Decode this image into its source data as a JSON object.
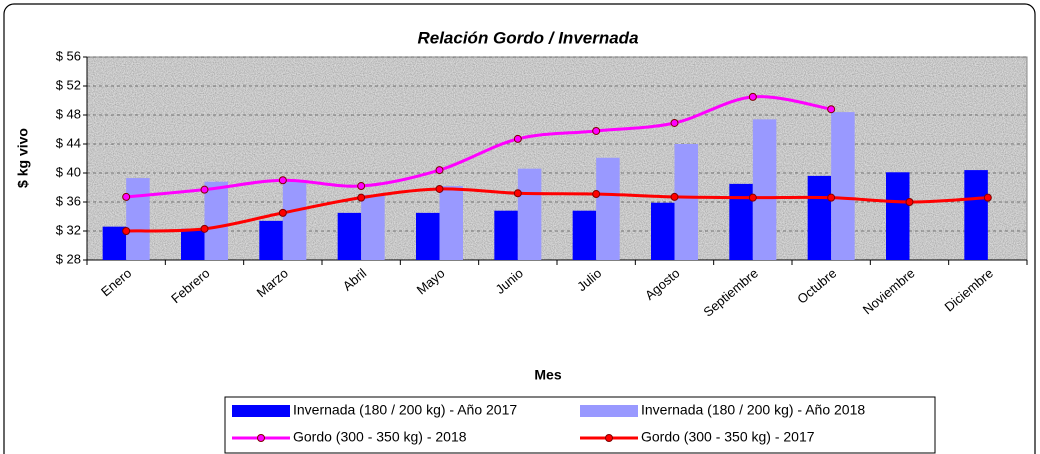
{
  "chart_data": {
    "type": "bar",
    "title": "Relación Gordo / Invernada",
    "x_label": "Mes",
    "y_label": "$ kg vivo",
    "categories": [
      "Enero",
      "Febrero",
      "Marzo",
      "Abril",
      "Mayo",
      "Junio",
      "Julio",
      "Agosto",
      "Septiembre",
      "Octubre",
      "Noviembre",
      "Diciembre"
    ],
    "series": [
      {
        "name": "Invernada (180 / 200 kg) - Año 2017",
        "type": "bar",
        "color": "#0000ff",
        "values": [
          32.6,
          32.3,
          33.4,
          34.5,
          34.5,
          34.8,
          34.8,
          35.9,
          38.5,
          39.6,
          40.1,
          40.4
        ]
      },
      {
        "name": "Invernada (180 / 200 kg) - Año 2018",
        "type": "bar",
        "color": "#9999ff",
        "values": [
          39.3,
          38.8,
          39.0,
          37.0,
          38.2,
          40.6,
          42.1,
          44.0,
          47.4,
          48.4,
          null,
          null
        ]
      },
      {
        "name": "Gordo (300 - 350 kg) - 2018",
        "type": "line",
        "color": "#ff00ff",
        "values": [
          36.7,
          37.7,
          39.0,
          38.2,
          40.4,
          44.7,
          45.8,
          46.9,
          50.5,
          48.8,
          null,
          null
        ]
      },
      {
        "name": "Gordo (300 - 350 kg) - 2017",
        "type": "line",
        "color": "#ff0000",
        "values": [
          32.0,
          32.3,
          34.5,
          36.6,
          37.8,
          37.2,
          37.1,
          36.7,
          36.6,
          36.6,
          36.0,
          36.6
        ]
      }
    ],
    "ylim": [
      28,
      56
    ],
    "yticks": [
      {
        "value": 28,
        "label": "$ 28"
      },
      {
        "value": 32,
        "label": "$ 32"
      },
      {
        "value": 36,
        "label": "$ 36"
      },
      {
        "value": 40,
        "label": "$ 40"
      },
      {
        "value": 44,
        "label": "$ 44"
      },
      {
        "value": 48,
        "label": "$ 48"
      },
      {
        "value": 52,
        "label": "$ 52"
      },
      {
        "value": 56,
        "label": "$ 56"
      }
    ],
    "grid": true
  }
}
